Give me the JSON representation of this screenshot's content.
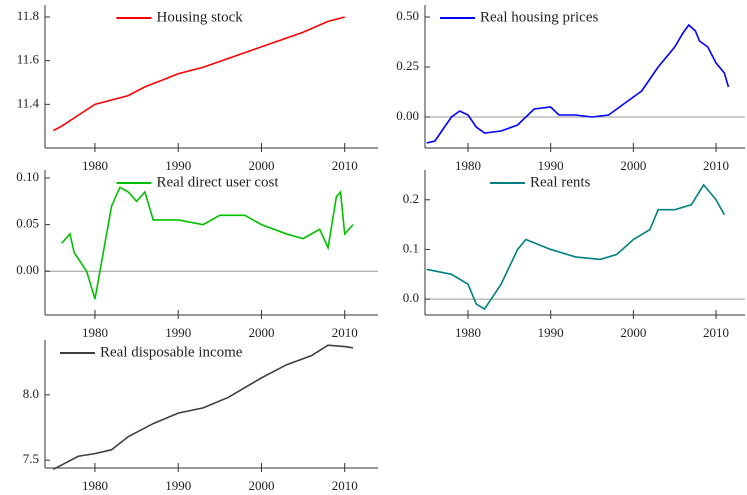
{
  "chart_data": [
    {
      "type": "line",
      "x": [
        1975,
        1976,
        1978,
        1980,
        1982,
        1984,
        1986,
        1988,
        1990,
        1993,
        1996,
        1999,
        2002,
        2005,
        2008,
        2010
      ],
      "series": [
        {
          "name": "Housing stock",
          "color": "#ff0000",
          "values": [
            11.28,
            11.3,
            11.35,
            11.4,
            11.42,
            11.44,
            11.48,
            11.51,
            11.54,
            11.57,
            11.61,
            11.65,
            11.69,
            11.73,
            11.78,
            11.8
          ]
        }
      ],
      "xlim": [
        1974,
        2014
      ],
      "xticks": [
        1980,
        1990,
        2000,
        2010
      ],
      "ylim": [
        11.2,
        11.855
      ],
      "yticks": [
        11.4,
        11.6,
        11.8
      ],
      "legend": "upper center"
    },
    {
      "type": "line",
      "x": [
        1975,
        1976,
        1977,
        1978,
        1979,
        1980,
        1981,
        1982,
        1984,
        1986,
        1987,
        1988,
        1990,
        1991,
        1993,
        1995,
        1997,
        1999,
        2001,
        2003,
        2005,
        2006,
        2006.7,
        2007.5,
        2008,
        2009,
        2010,
        2011,
        2011.5
      ],
      "series": [
        {
          "name": "Real housing prices",
          "color": "#0000ff",
          "values": [
            -0.13,
            -0.12,
            -0.06,
            0.0,
            0.03,
            0.01,
            -0.05,
            -0.08,
            -0.07,
            -0.04,
            0.0,
            0.04,
            0.05,
            0.01,
            0.01,
            0.0,
            0.01,
            0.07,
            0.13,
            0.25,
            0.35,
            0.42,
            0.46,
            0.43,
            0.38,
            0.35,
            0.27,
            0.22,
            0.15
          ]
        }
      ],
      "xlim": [
        1974.8,
        2013.5
      ],
      "xticks": [
        1980,
        1990,
        2000,
        2010
      ],
      "ylim": [
        -0.155,
        0.56
      ],
      "yticks": [
        {
          "value": 0,
          "label": "0.00"
        },
        0.25,
        {
          "value": 0.5,
          "label": "0.50"
        }
      ],
      "reference_line": 0,
      "legend": "upper left"
    },
    {
      "type": "line",
      "x": [
        1976,
        1977,
        1977.5,
        1979,
        1980,
        1981,
        1982,
        1983,
        1984,
        1985,
        1986,
        1987,
        1990,
        1993,
        1995,
        1998,
        2000,
        2003,
        2005,
        2007,
        2008,
        2009,
        2009.5,
        2010,
        2011
      ],
      "series": [
        {
          "name": "Real direct user cost",
          "color": "#00c000",
          "values": [
            0.03,
            0.04,
            0.02,
            0.0,
            -0.03,
            0.02,
            0.07,
            0.09,
            0.085,
            0.075,
            0.085,
            0.055,
            0.055,
            0.05,
            0.06,
            0.06,
            0.05,
            0.04,
            0.035,
            0.045,
            0.025,
            0.08,
            0.085,
            0.04,
            0.05
          ]
        }
      ],
      "xlim": [
        1974,
        2014
      ],
      "xticks": [
        1980,
        1990,
        2000,
        2010
      ],
      "ylim": [
        -0.047,
        0.1086
      ],
      "yticks": [
        {
          "value": 0,
          "label": "0.00"
        },
        0.05,
        {
          "value": 0.1,
          "label": "0.10"
        }
      ],
      "reference_line": 0,
      "legend": "upper center"
    },
    {
      "type": "line",
      "x": [
        1975,
        1978,
        1980,
        1981,
        1982,
        1984,
        1986,
        1987,
        1990,
        1993,
        1996,
        1998,
        2000,
        2002,
        2003,
        2005,
        2007,
        2008.5,
        2010,
        2011
      ],
      "series": [
        {
          "name": "Real rents",
          "color": "#008080",
          "values": [
            0.06,
            0.05,
            0.03,
            -0.01,
            -0.02,
            0.03,
            0.1,
            0.12,
            0.1,
            0.085,
            0.08,
            0.09,
            0.12,
            0.14,
            0.18,
            0.18,
            0.19,
            0.23,
            0.2,
            0.17
          ]
        }
      ],
      "xlim": [
        1974.8,
        2013.5
      ],
      "xticks": [
        1980,
        1990,
        2000,
        2010
      ],
      "ylim": [
        -0.032,
        0.26
      ],
      "yticks": [
        {
          "value": 0,
          "label": "0.0"
        },
        0.1,
        0.2
      ],
      "reference_line": 0,
      "legend": "upper center"
    },
    {
      "type": "line",
      "x": [
        1975,
        1978,
        1980,
        1982,
        1984,
        1987,
        1990,
        1993,
        1996,
        2000,
        2003,
        2006,
        2008,
        2010,
        2011
      ],
      "series": [
        {
          "name": "Real disposable income",
          "color": "#404040",
          "values": [
            7.43,
            7.53,
            7.55,
            7.58,
            7.68,
            7.78,
            7.86,
            7.9,
            7.98,
            8.13,
            8.23,
            8.3,
            8.38,
            8.37,
            8.36
          ]
        }
      ],
      "xlim": [
        1974,
        2014
      ],
      "xticks": [
        1980,
        1990,
        2000,
        2010
      ],
      "ylim": [
        7.44,
        8.42
      ],
      "yticks": [
        7.5,
        {
          "value": 8,
          "label": "8.0"
        }
      ],
      "legend": "upper left"
    }
  ]
}
